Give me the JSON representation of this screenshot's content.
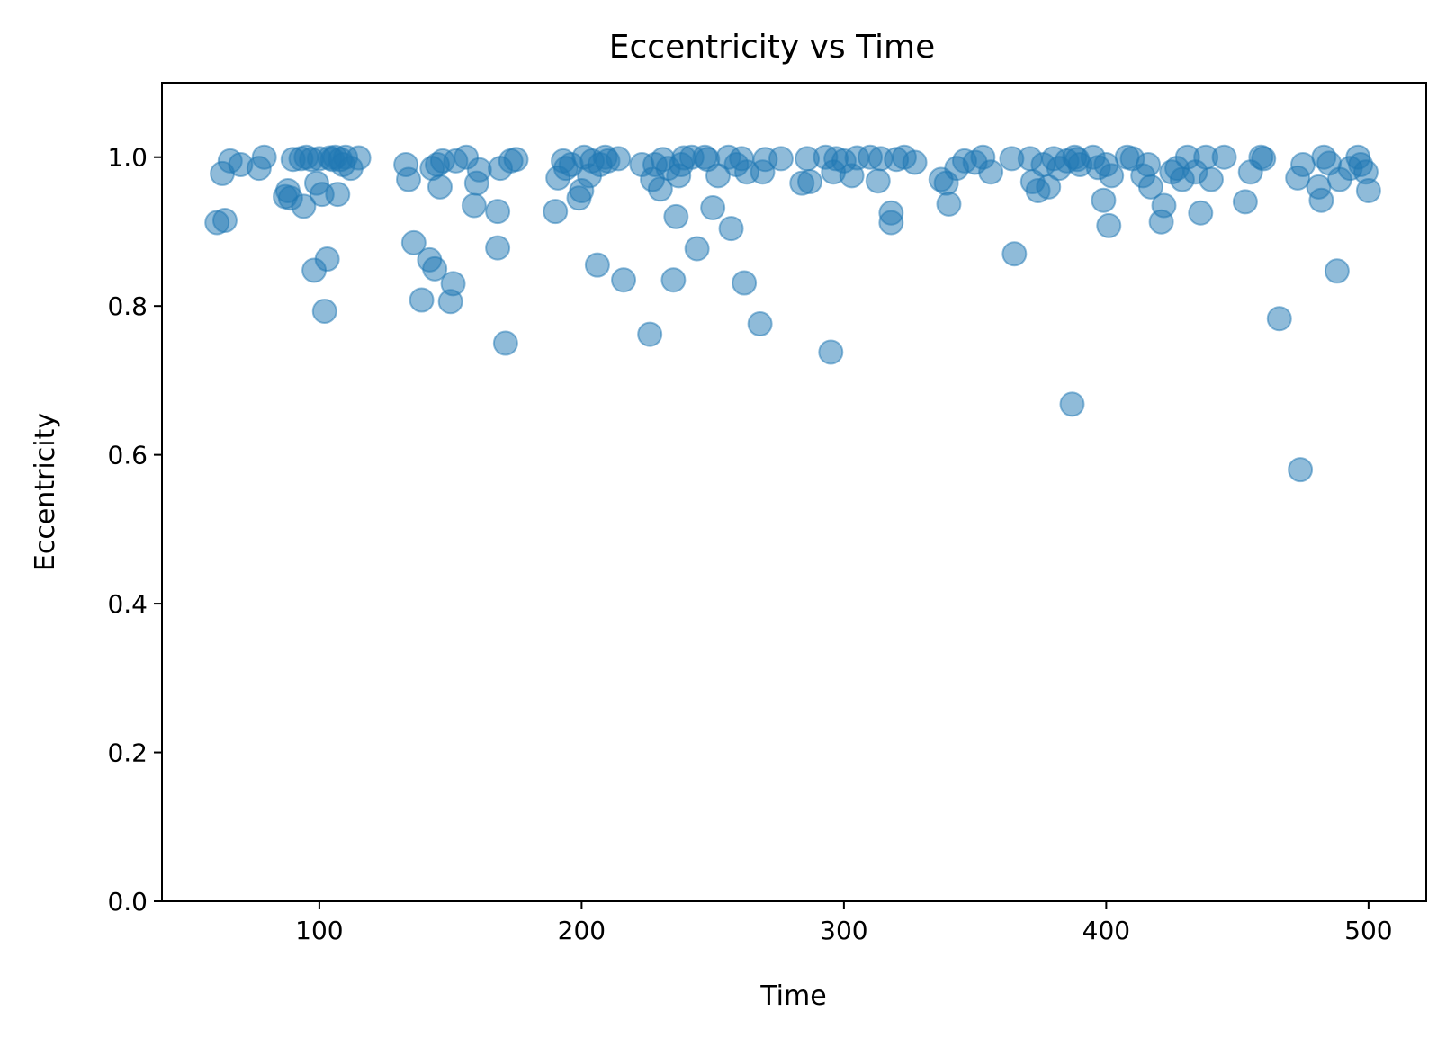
{
  "chart_data": {
    "type": "scatter",
    "title": "Eccentricity vs Time",
    "xlabel": "Time",
    "ylabel": "Eccentricity",
    "xlim": [
      40,
      522
    ],
    "ylim": [
      0.0,
      1.1
    ],
    "xticks": [
      100,
      200,
      300,
      400,
      500
    ],
    "xtick_labels": [
      "100",
      "200",
      "300",
      "400",
      "500"
    ],
    "yticks": [
      0.0,
      0.2,
      0.4,
      0.6,
      0.8,
      1.0
    ],
    "ytick_labels": [
      "0.0",
      "0.2",
      "0.4",
      "0.6",
      "0.8",
      "1.0"
    ],
    "grid": false,
    "legend": "none",
    "marker_color": "#1f77b4",
    "marker_alpha": 0.5,
    "points": [
      [
        61,
        0.912
      ],
      [
        63,
        0.978
      ],
      [
        64,
        0.915
      ],
      [
        66,
        0.995
      ],
      [
        70,
        0.99
      ],
      [
        77,
        0.985
      ],
      [
        79,
        1.0
      ],
      [
        87,
        0.947
      ],
      [
        88,
        0.955
      ],
      [
        89,
        0.945
      ],
      [
        90,
        0.997
      ],
      [
        93,
        0.998
      ],
      [
        94,
        0.934
      ],
      [
        95,
        1.0
      ],
      [
        97,
        0.997
      ],
      [
        98,
        0.848
      ],
      [
        99,
        0.965
      ],
      [
        100,
        0.998
      ],
      [
        101,
        0.95
      ],
      [
        102,
        0.793
      ],
      [
        103,
        0.863
      ],
      [
        104,
        0.999
      ],
      [
        105,
        0.997
      ],
      [
        106,
        1.0
      ],
      [
        107,
        0.95
      ],
      [
        108,
        0.997
      ],
      [
        109,
        0.99
      ],
      [
        110,
        1.0
      ],
      [
        112,
        0.985
      ],
      [
        115,
        0.999
      ],
      [
        133,
        0.99
      ],
      [
        134,
        0.97
      ],
      [
        136,
        0.885
      ],
      [
        139,
        0.808
      ],
      [
        142,
        0.862
      ],
      [
        143,
        0.985
      ],
      [
        144,
        0.85
      ],
      [
        145,
        0.99
      ],
      [
        146,
        0.96
      ],
      [
        147,
        0.995
      ],
      [
        150,
        0.806
      ],
      [
        151,
        0.83
      ],
      [
        152,
        0.995
      ],
      [
        156,
        1.0
      ],
      [
        159,
        0.935
      ],
      [
        160,
        0.965
      ],
      [
        161,
        0.983
      ],
      [
        168,
        0.927
      ],
      [
        168,
        0.878
      ],
      [
        169,
        0.985
      ],
      [
        171,
        0.75
      ],
      [
        173,
        0.995
      ],
      [
        175,
        0.997
      ],
      [
        190,
        0.927
      ],
      [
        191,
        0.972
      ],
      [
        193,
        0.995
      ],
      [
        194,
        0.985
      ],
      [
        196,
        0.99
      ],
      [
        199,
        0.945
      ],
      [
        200,
        0.955
      ],
      [
        201,
        1.0
      ],
      [
        203,
        0.975
      ],
      [
        204,
        0.995
      ],
      [
        206,
        0.855
      ],
      [
        207,
        0.99
      ],
      [
        209,
        1.0
      ],
      [
        210,
        0.995
      ],
      [
        214,
        0.998
      ],
      [
        216,
        0.835
      ],
      [
        223,
        0.99
      ],
      [
        226,
        0.762
      ],
      [
        227,
        0.97
      ],
      [
        228,
        0.99
      ],
      [
        230,
        0.957
      ],
      [
        231,
        0.997
      ],
      [
        233,
        0.985
      ],
      [
        235,
        0.835
      ],
      [
        236,
        0.92
      ],
      [
        237,
        0.975
      ],
      [
        238,
        0.99
      ],
      [
        239,
        0.999
      ],
      [
        242,
        1.0
      ],
      [
        244,
        0.877
      ],
      [
        247,
        1.0
      ],
      [
        248,
        0.997
      ],
      [
        250,
        0.932
      ],
      [
        252,
        0.975
      ],
      [
        256,
        1.0
      ],
      [
        257,
        0.904
      ],
      [
        259,
        0.99
      ],
      [
        261,
        0.998
      ],
      [
        262,
        0.831
      ],
      [
        263,
        0.98
      ],
      [
        268,
        0.776
      ],
      [
        269,
        0.98
      ],
      [
        270,
        0.997
      ],
      [
        276,
        0.998
      ],
      [
        284,
        0.965
      ],
      [
        286,
        0.998
      ],
      [
        287,
        0.967
      ],
      [
        293,
        1.0
      ],
      [
        295,
        0.738
      ],
      [
        296,
        0.98
      ],
      [
        297,
        0.998
      ],
      [
        300,
        0.995
      ],
      [
        303,
        0.975
      ],
      [
        305,
        0.999
      ],
      [
        310,
        1.0
      ],
      [
        313,
        0.968
      ],
      [
        314,
        0.998
      ],
      [
        318,
        0.925
      ],
      [
        318,
        0.912
      ],
      [
        320,
        0.997
      ],
      [
        323,
        1.0
      ],
      [
        327,
        0.993
      ],
      [
        337,
        0.97
      ],
      [
        339,
        0.965
      ],
      [
        340,
        0.937
      ],
      [
        343,
        0.985
      ],
      [
        346,
        0.995
      ],
      [
        350,
        0.993
      ],
      [
        353,
        1.0
      ],
      [
        356,
        0.98
      ],
      [
        364,
        0.998
      ],
      [
        365,
        0.87
      ],
      [
        371,
        0.998
      ],
      [
        372,
        0.967
      ],
      [
        374,
        0.955
      ],
      [
        376,
        0.99
      ],
      [
        378,
        0.96
      ],
      [
        380,
        0.998
      ],
      [
        382,
        0.985
      ],
      [
        385,
        0.995
      ],
      [
        387,
        0.668
      ],
      [
        388,
        1.0
      ],
      [
        389,
        0.997
      ],
      [
        390,
        0.99
      ],
      [
        395,
        1.0
      ],
      [
        397,
        0.986
      ],
      [
        399,
        0.942
      ],
      [
        400,
        0.99
      ],
      [
        401,
        0.908
      ],
      [
        402,
        0.975
      ],
      [
        408,
        1.0
      ],
      [
        410,
        0.998
      ],
      [
        414,
        0.975
      ],
      [
        416,
        0.99
      ],
      [
        417,
        0.96
      ],
      [
        421,
        0.913
      ],
      [
        422,
        0.935
      ],
      [
        425,
        0.98
      ],
      [
        427,
        0.985
      ],
      [
        429,
        0.97
      ],
      [
        431,
        1.0
      ],
      [
        434,
        0.98
      ],
      [
        436,
        0.925
      ],
      [
        438,
        1.0
      ],
      [
        440,
        0.97
      ],
      [
        445,
        1.0
      ],
      [
        453,
        0.94
      ],
      [
        455,
        0.98
      ],
      [
        459,
        1.0
      ],
      [
        460,
        0.998
      ],
      [
        466,
        0.783
      ],
      [
        473,
        0.972
      ],
      [
        474,
        0.58
      ],
      [
        475,
        0.99
      ],
      [
        481,
        0.96
      ],
      [
        482,
        0.942
      ],
      [
        483,
        1.0
      ],
      [
        485,
        0.992
      ],
      [
        488,
        0.847
      ],
      [
        489,
        0.97
      ],
      [
        493,
        0.985
      ],
      [
        496,
        1.0
      ],
      [
        497,
        0.99
      ],
      [
        499,
        0.98
      ],
      [
        500,
        0.955
      ]
    ]
  }
}
